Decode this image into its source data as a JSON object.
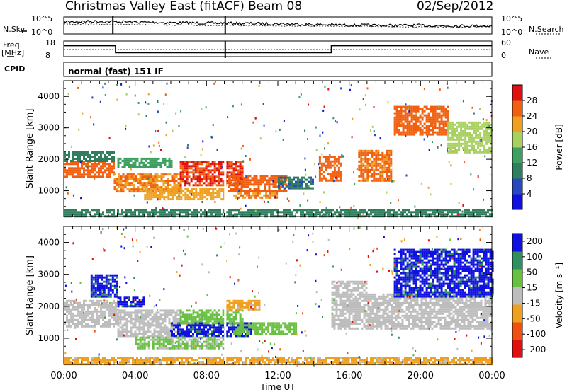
{
  "header": {
    "title": "Christmas Valley East (fitACF)",
    "beam": "Beam 08",
    "date": "02/Sep/2012"
  },
  "left_labels": {
    "nsky": "N.Sky",
    "freq_line1": "Freq.",
    "freq_line2": "[MHz]",
    "cpid": "CPID"
  },
  "right_labels": {
    "nsearch": "N.Search",
    "nave": "Nave"
  },
  "cpid_text": "normal (fast) 151 IF",
  "chart_data": [
    {
      "type": "line",
      "name": "noise-panel",
      "y_tick_labels": [
        "10^5",
        "10^0"
      ],
      "right_tick_labels": [
        "10^5",
        "10^0"
      ],
      "series": [
        {
          "name": "N.Sky",
          "x_hours": [
            0,
            2,
            4,
            6,
            8,
            10,
            12,
            14,
            16,
            18,
            20,
            22,
            24
          ],
          "level": [
            0.72,
            0.74,
            0.7,
            0.66,
            0.64,
            0.62,
            0.6,
            0.55,
            0.52,
            0.5,
            0.5,
            0.48,
            0.48
          ]
        },
        {
          "name": "N.Search",
          "x_hours": [
            0,
            4,
            8,
            12,
            16,
            20,
            24
          ],
          "level": [
            0.58,
            0.55,
            0.5,
            0.48,
            0.45,
            0.42,
            0.42
          ]
        }
      ],
      "spikes_hours": [
        2.75,
        9.05
      ]
    },
    {
      "type": "line",
      "name": "frequency-nave-panel",
      "left_ticks": [
        18,
        8
      ],
      "right_ticks": [
        60,
        0
      ],
      "series": [
        {
          "name": "Freq.",
          "steps": [
            [
              0,
              0.3
            ],
            [
              2.9,
              0.3
            ],
            [
              2.9,
              0.75
            ],
            [
              15.0,
              0.75
            ],
            [
              15.0,
              0.3
            ],
            [
              24,
              0.3
            ]
          ]
        },
        {
          "name": "Nave",
          "level": 0.55
        }
      ]
    },
    {
      "type": "heatmap",
      "name": "power",
      "ylabel": "Slant Range [km]",
      "xlabel": "Time UT",
      "xlim": [
        0,
        24
      ],
      "ylim": [
        180,
        4500
      ],
      "x_ticks": [
        "00:00",
        "04:00",
        "08:00",
        "12:00",
        "16:00",
        "20:00",
        "00:00"
      ],
      "y_ticks": [
        1000,
        2000,
        3000,
        4000
      ],
      "colorbar": {
        "label": "Power [dB]",
        "ticks": [
          4,
          8,
          12,
          16,
          20,
          24,
          28
        ],
        "range": [
          0,
          32
        ],
        "colors": [
          "#1010e0",
          "#2848c0",
          "#2f7f5f",
          "#3ea060",
          "#a8d060",
          "#f0a020",
          "#f06010",
          "#e01010"
        ]
      },
      "regions": [
        {
          "t0": 0.0,
          "t1": 2.8,
          "r0": 1450,
          "r1": 1950,
          "v": 26
        },
        {
          "t0": 0.0,
          "t1": 2.8,
          "r0": 1950,
          "r1": 2250,
          "v": 10
        },
        {
          "t0": 2.8,
          "t1": 6.5,
          "r0": 950,
          "r1": 1550,
          "v": 24
        },
        {
          "t0": 3.0,
          "t1": 6.0,
          "r0": 1750,
          "r1": 2050,
          "v": 14
        },
        {
          "t0": 4.5,
          "t1": 9.0,
          "r0": 750,
          "r1": 1100,
          "v": 22
        },
        {
          "t0": 6.5,
          "t1": 10.0,
          "r0": 1150,
          "r1": 1950,
          "v": 28
        },
        {
          "t0": 9.2,
          "t1": 12.5,
          "r0": 1000,
          "r1": 1500,
          "v": 26
        },
        {
          "t0": 9.5,
          "t1": 12.0,
          "r0": 750,
          "r1": 950,
          "v": 24
        },
        {
          "t0": 12.0,
          "t1": 14.0,
          "r0": 1050,
          "r1": 1450,
          "v": 9
        },
        {
          "t0": 14.3,
          "t1": 15.6,
          "r0": 1300,
          "r1": 2100,
          "v": 26
        },
        {
          "t0": 16.5,
          "t1": 18.4,
          "r0": 1300,
          "r1": 2300,
          "v": 25
        },
        {
          "t0": 18.5,
          "t1": 21.5,
          "r0": 2800,
          "r1": 3700,
          "v": 26
        },
        {
          "t0": 21.5,
          "t1": 24.0,
          "r0": 2200,
          "r1": 3200,
          "v": 18
        },
        {
          "t0": 0.0,
          "t1": 24.0,
          "r0": 180,
          "r1": 420,
          "v": 10
        }
      ]
    },
    {
      "type": "heatmap",
      "name": "velocity",
      "ylabel": "Slant Range [km]",
      "xlabel": "Time UT",
      "xlim": [
        0,
        24
      ],
      "ylim": [
        180,
        4500
      ],
      "x_ticks": [
        "00:00",
        "04:00",
        "08:00",
        "12:00",
        "16:00",
        "20:00",
        "00:00"
      ],
      "y_ticks": [
        1000,
        2000,
        3000,
        4000
      ],
      "colorbar": {
        "label": "Velocity [m s⁻¹]",
        "ticks": [
          200,
          100,
          50,
          15,
          -15,
          -50,
          -100,
          -200
        ],
        "range": [
          -250,
          250
        ],
        "colors": [
          "#e01010",
          "#f05010",
          "#f0a020",
          "#bdbdbd",
          "#68c040",
          "#2f8f5f",
          "#1010e0"
        ]
      },
      "regions": [
        {
          "t0": 0.0,
          "t1": 3.0,
          "r0": 1400,
          "r1": 2200,
          "v": 0
        },
        {
          "t0": 3.0,
          "t1": 6.5,
          "r0": 1100,
          "r1": 1900,
          "v": 0
        },
        {
          "t0": 3.0,
          "t1": 4.5,
          "r0": 2000,
          "r1": 2300,
          "v": 200
        },
        {
          "t0": 6.0,
          "t1": 10.5,
          "r0": 1100,
          "r1": 1500,
          "v": 200
        },
        {
          "t0": 6.5,
          "t1": 10.0,
          "r0": 1500,
          "r1": 1900,
          "v": 70
        },
        {
          "t0": 9.5,
          "t1": 13.0,
          "r0": 1150,
          "r1": 1500,
          "v": 70
        },
        {
          "t0": 4.0,
          "t1": 9.0,
          "r0": 700,
          "r1": 1050,
          "v": 50
        },
        {
          "t0": 9.0,
          "t1": 11.0,
          "r0": 1900,
          "r1": 2200,
          "v": -60
        },
        {
          "t0": 15.0,
          "t1": 24.0,
          "r0": 1300,
          "r1": 2400,
          "v": 0
        },
        {
          "t0": 15.0,
          "t1": 17.0,
          "r0": 2400,
          "r1": 2800,
          "v": 0
        },
        {
          "t0": 18.5,
          "t1": 24.0,
          "r0": 2300,
          "r1": 3800,
          "v": 200
        },
        {
          "t0": 0.0,
          "t1": 24.0,
          "r0": 180,
          "r1": 420,
          "v": -60
        },
        {
          "t0": 1.5,
          "t1": 3.0,
          "r0": 2300,
          "r1": 3000,
          "v": 200
        }
      ]
    }
  ]
}
